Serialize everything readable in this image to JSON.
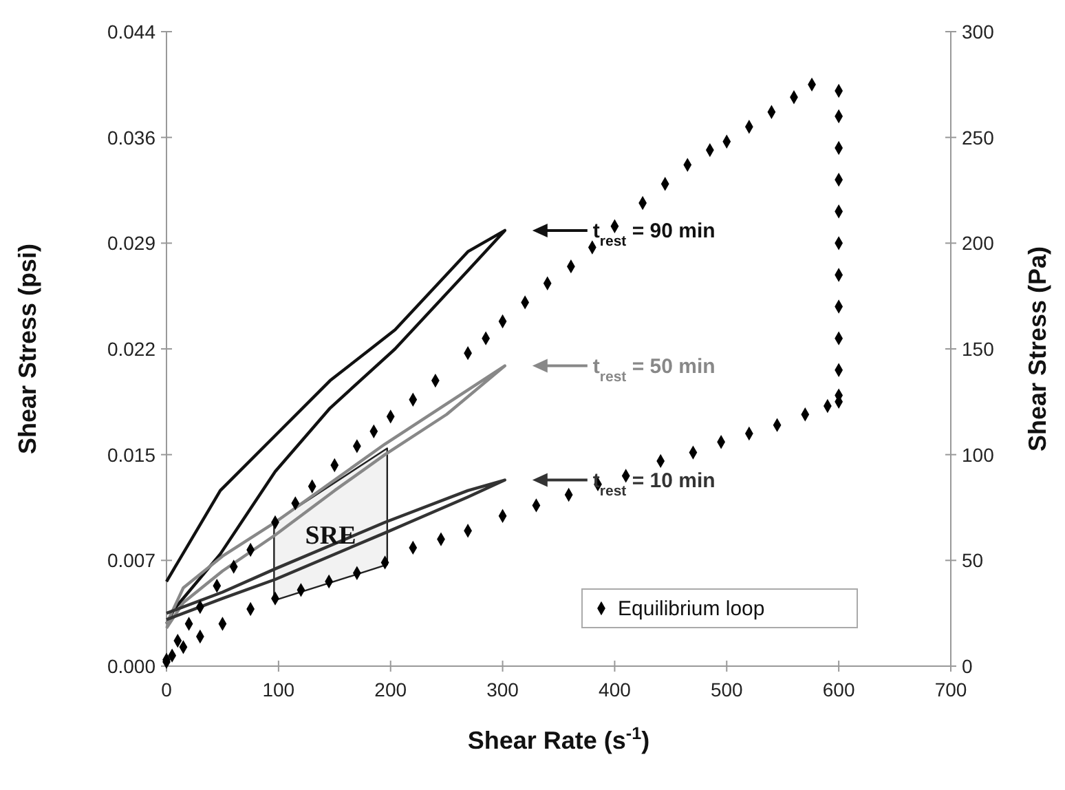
{
  "chart_data": {
    "type": "scatter",
    "xlabel": "Shear Rate (s$^{-1}$)",
    "ylabel": "Shear Stress (psi)",
    "y2label": "Shear Stress (Pa)",
    "xlim": [
      0,
      700
    ],
    "xticks": [
      0,
      100,
      200,
      300,
      400,
      500,
      600,
      700
    ],
    "ylim": [
      0,
      0.0435
    ],
    "yticks": [
      {
        "value": 0,
        "label": "0.000"
      },
      {
        "value": 0.00725,
        "label": "0.007"
      },
      {
        "value": 0.0145,
        "label": "0.015"
      },
      {
        "value": 0.02175,
        "label": "0.022"
      },
      {
        "value": 0.029,
        "label": "0.029"
      },
      {
        "value": 0.03625,
        "label": "0.036"
      },
      {
        "value": 0.0435,
        "label": "0.044"
      }
    ],
    "y2lim": [
      0,
      300
    ],
    "y2ticks": [
      0,
      50,
      100,
      150,
      200,
      250,
      300
    ],
    "legend": "bottom right",
    "annotations": [
      "t$_{rest}$ = 90 min",
      "t$_{rest}$ = 50 min",
      "t$_{rest}$ = 10 min",
      "SRE"
    ],
    "series": [
      {
        "type": "area",
        "color": "#f2f2f2",
        "axis": "y2",
        "x": [
          96,
          197,
          197,
          96,
          96
        ],
        "values": [
          68,
          103,
          48,
          31,
          68
        ]
      },
      {
        "type": "line",
        "color": "#111111",
        "axis": "y2",
        "x": [
          0,
          48,
          97,
          146,
          204,
          269,
          302,
          269,
          204,
          146,
          97,
          48,
          7,
          0
        ],
        "values": [
          40,
          83,
          109,
          135,
          159,
          196,
          206,
          187,
          150,
          122,
          92,
          53,
          27,
          20
        ]
      },
      {
        "type": "line",
        "color": "#888888",
        "axis": "y2",
        "x": [
          0,
          15,
          50,
          97,
          150,
          195,
          250,
          302,
          250,
          195,
          150,
          97,
          50,
          15,
          0
        ],
        "values": [
          20,
          37,
          52,
          68,
          88,
          105,
          124,
          142,
          119,
          100,
          83,
          62,
          45,
          30,
          18
        ]
      },
      {
        "type": "line",
        "color": "#333333",
        "axis": "y2",
        "x": [
          0,
          50,
          97,
          195,
          269,
          302,
          269,
          195,
          97,
          50,
          0
        ],
        "values": [
          25,
          35,
          46,
          68,
          83,
          88,
          80,
          63,
          41,
          32,
          22
        ]
      },
      {
        "name": "Equilibrium loop",
        "color": "#000000",
        "axis": "y2",
        "marker": "diamond",
        "x": [
          0,
          10,
          20,
          30,
          45,
          60,
          75,
          97,
          115,
          130,
          150,
          170,
          185,
          200,
          220,
          240,
          269,
          285,
          300,
          320,
          340,
          361,
          380,
          400,
          425,
          445,
          465,
          485,
          500,
          520,
          540,
          560,
          576,
          600,
          600,
          600,
          600,
          600,
          600,
          600,
          600,
          600,
          600,
          600,
          600,
          590,
          570,
          545,
          520,
          495,
          470,
          441,
          410,
          385,
          359,
          330,
          300,
          269,
          245,
          220,
          195,
          170,
          145,
          120,
          97,
          75,
          50,
          30,
          15,
          5,
          0
        ],
        "values": [
          3,
          12,
          20,
          28,
          38,
          47,
          55,
          68,
          77,
          85,
          95,
          104,
          111,
          118,
          126,
          135,
          148,
          155,
          163,
          172,
          181,
          189,
          198,
          208,
          219,
          228,
          237,
          244,
          248,
          255,
          262,
          269,
          275,
          272,
          260,
          245,
          230,
          215,
          200,
          185,
          170,
          155,
          140,
          128,
          125,
          123,
          119,
          114,
          110,
          106,
          101,
          97,
          90,
          86,
          81,
          76,
          71,
          64,
          60,
          56,
          49,
          44,
          40,
          36,
          32,
          27,
          20,
          14,
          9,
          5,
          2
        ]
      }
    ]
  }
}
